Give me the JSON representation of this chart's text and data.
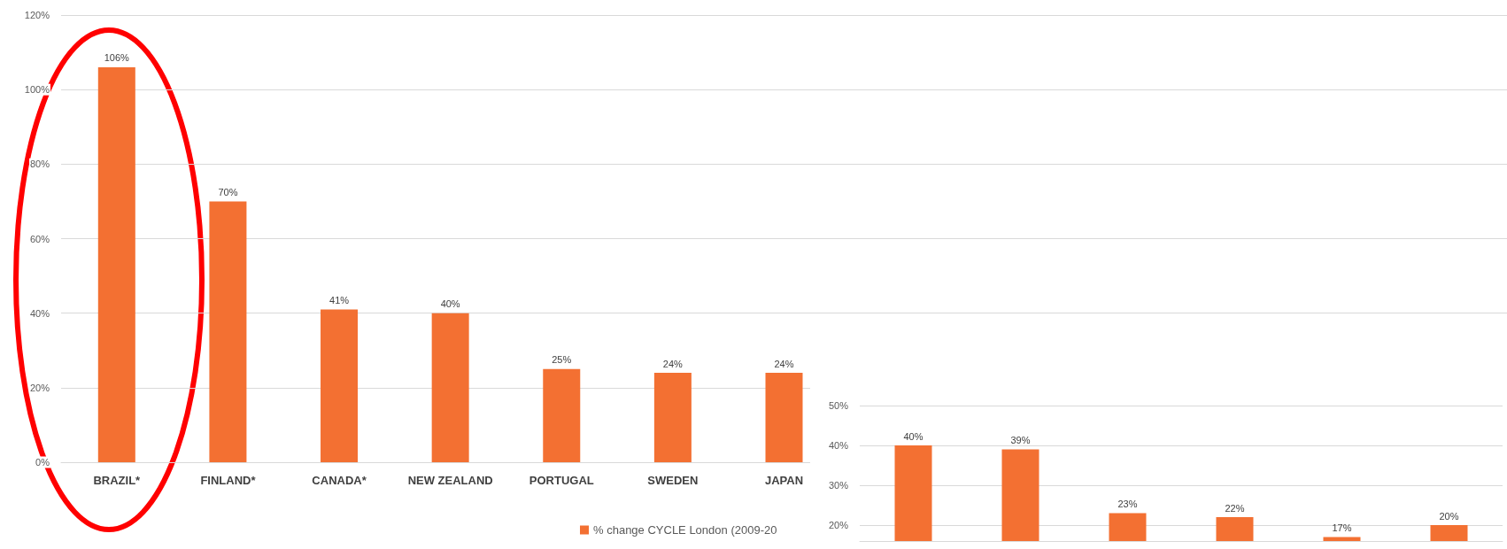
{
  "chart_data": [
    {
      "type": "bar",
      "categories": [
        "BRAZIL*",
        "FINLAND*",
        "CANADA*",
        "NEW ZEALAND",
        "PORTUGAL",
        "SWEDEN",
        "JAPAN",
        null,
        null,
        null,
        null,
        null,
        null
      ],
      "series": [
        {
          "name": "% change CYCLE London (2009-20",
          "color": "#f37032",
          "values": [
            106,
            70,
            41,
            40,
            25,
            24,
            24,
            null,
            null,
            null,
            null,
            null,
            null
          ],
          "value_labels": [
            "106%",
            "70%",
            "41%",
            "40%",
            "25%",
            "24%",
            "24%",
            null,
            null,
            null,
            null,
            null,
            null
          ]
        }
      ],
      "ylim": [
        0,
        120
      ],
      "yticks": [
        {
          "value": 0,
          "label": "0%"
        },
        {
          "value": 20,
          "label": "20%"
        },
        {
          "value": 40,
          "label": "40%"
        },
        {
          "value": 60,
          "label": "60%"
        },
        {
          "value": 80,
          "label": "80%"
        },
        {
          "value": 100,
          "label": "100%"
        },
        {
          "value": 120,
          "label": "120%"
        }
      ],
      "grid": "y",
      "legend": "bottom"
    },
    {
      "type": "bar",
      "categories": [
        null,
        null,
        null,
        null,
        null,
        null
      ],
      "series": [
        {
          "color": "#f37032",
          "values": [
            40,
            39,
            23,
            22,
            17,
            20
          ],
          "value_labels": [
            "40%",
            "39%",
            "23%",
            "22%",
            "17%",
            "20%"
          ]
        }
      ],
      "ylim": [
        16,
        50
      ],
      "yticks": [
        {
          "value": 20,
          "label": "20%"
        },
        {
          "value": 30,
          "label": "30%"
        },
        {
          "value": 40,
          "label": "40%"
        },
        {
          "value": 50,
          "label": "50%"
        }
      ],
      "grid": "y",
      "legend": false
    }
  ]
}
